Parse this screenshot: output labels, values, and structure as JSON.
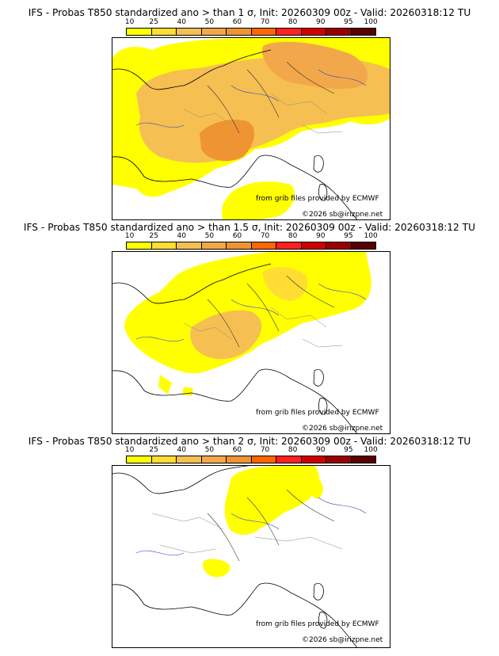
{
  "colorbar": {
    "ticks": [
      "10",
      "25",
      "40",
      "50",
      "60",
      "70",
      "80",
      "90",
      "95",
      "100"
    ],
    "colors": [
      "#ffff00",
      "#ffdd33",
      "#f6bf52",
      "#f2a84a",
      "#ee9433",
      "#ff6600",
      "#ff2020",
      "#d00000",
      "#9a0000",
      "#5a0000"
    ]
  },
  "panels": [
    {
      "title": "IFS - Probas T850  standardized ano > than 1 σ, Init: 20260309 00z - Valid: 20260318:12 TU",
      "credit_source": "from grib files provided by ECMWF",
      "credit_copyright": "©2026 sb@irizpne.net"
    },
    {
      "title": "IFS - Probas T850  standardized ano > than 1.5 σ, Init: 20260309 00z - Valid: 20260318:12 TU",
      "credit_source": "from grib files provided by ECMWF",
      "credit_copyright": "©2026 sb@irizpne.net"
    },
    {
      "title": "IFS - Probas T850  standardized ano > than 2 σ, Init: 20260309 00z - Valid: 20260318:12 TU",
      "credit_source": "from grib files provided by ECMWF",
      "credit_copyright": "©2026 sb@irizpne.net"
    }
  ]
}
